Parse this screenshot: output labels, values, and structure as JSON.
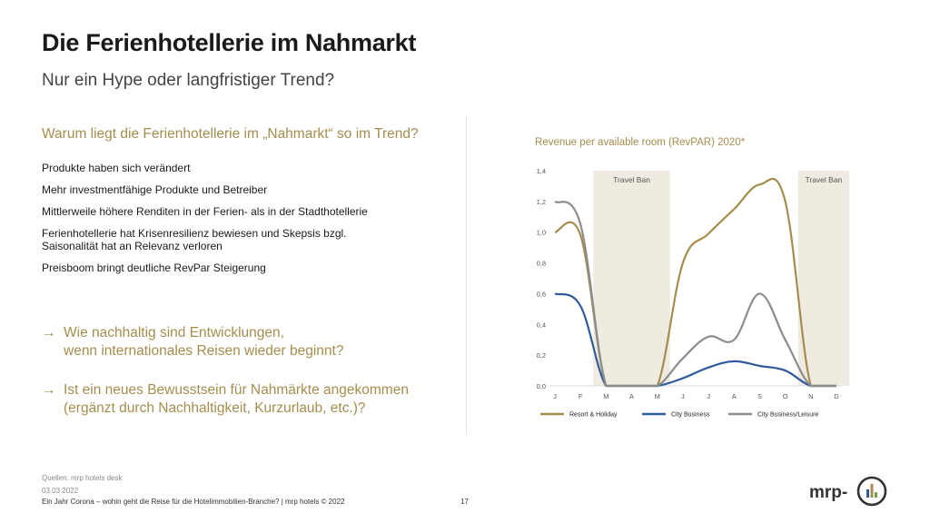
{
  "slide": {
    "title": "Die Ferienhotellerie im Nahmarkt",
    "subtitle": "Nur ein Hype oder langfristiger Trend?",
    "section_heading": "Warum liegt die Ferienhotellerie im „Nahmarkt“ so im Trend?",
    "bullets": [
      "Produkte haben sich verändert",
      "Mehr investmentfähige Produkte und Betreiber",
      "Mittlerweile höhere Renditen in der Ferien- als in der Stadthotellerie",
      "Ferienhotellerie hat Krisenresilienz bewiesen und Skepsis bzgl.",
      "Saisonalität hat an Relevanz verloren",
      "Preisboom bringt deutliche RevPar Steigerung"
    ],
    "questions": [
      {
        "arrow": "→",
        "line1": "Wie nachhaltig sind Entwicklungen,",
        "line2": "wenn internationales Reisen wieder beginnt?"
      },
      {
        "arrow": "→",
        "line1": "Ist ein neues Bewusstsein für Nahmärkte angekommen",
        "line2": "(ergänzt durch Nachhaltigkeit, Kurzurlaub, etc.)?"
      }
    ]
  },
  "footer": {
    "source": "Quellen: mrp hotels desk",
    "date": "03.03.2022",
    "caption": "Ein Jahr Corona – wohin geht die Reise für die Hotelimmobilien-Branche?  | mrp hotels © 2022",
    "page": "17"
  },
  "logo": {
    "text": "mrp-",
    "icon": "mrp-logo-icon"
  },
  "colors": {
    "gold": "#a58d4e",
    "blue": "#2f5b9a",
    "gray": "#8c8c8c",
    "band": "#efebe1"
  },
  "chart_data": {
    "type": "line",
    "title": "Revenue per available room (RevPAR) 2020*",
    "categories": [
      "J",
      "F",
      "M",
      "A",
      "M",
      "J",
      "J",
      "A",
      "S",
      "O",
      "N",
      "D"
    ],
    "ylim": [
      0,
      1.4
    ],
    "yticks": [
      "0,0",
      "0,2",
      "0,4",
      "0,6",
      "0,8",
      "1,0",
      "1,2",
      "1,4"
    ],
    "yticks_values": [
      0,
      0.2,
      0.4,
      0.6,
      0.8,
      1.0,
      1.2,
      1.4
    ],
    "grid": false,
    "legend_placement": "bottom",
    "bands": [
      {
        "label": "Travel Ban",
        "from": 1.5,
        "to": 4.5
      },
      {
        "label": "Travel Ban",
        "from": 9.5,
        "to": 11.5
      }
    ],
    "series": [
      {
        "name": "Resort & Holiday",
        "color": "#a58d4e",
        "values": [
          1.0,
          0.98,
          0.0,
          0.0,
          0.0,
          0.8,
          0.99,
          1.15,
          1.31,
          1.2,
          0.0,
          0.0
        ]
      },
      {
        "name": "City Business",
        "color": "#2f5b9a",
        "values": [
          0.6,
          0.52,
          0.0,
          0.0,
          0.0,
          0.05,
          0.12,
          0.16,
          0.13,
          0.1,
          0.0,
          0.0
        ]
      },
      {
        "name": "City Business/Leisure",
        "color": "#8c8c8c",
        "values": [
          1.2,
          1.05,
          0.0,
          0.0,
          0.0,
          0.18,
          0.32,
          0.3,
          0.6,
          0.3,
          0.0,
          0.0
        ]
      }
    ]
  }
}
